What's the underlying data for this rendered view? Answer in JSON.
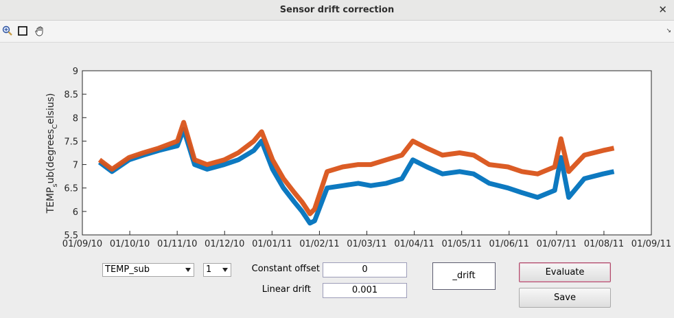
{
  "window": {
    "title": "Sensor drift correction",
    "close_glyph": "✕"
  },
  "toolbar": {
    "icons": [
      "zoom-in-icon",
      "rectangle-select-icon",
      "pan-hand-icon"
    ],
    "dock_glyph": "↘"
  },
  "chart_data": {
    "type": "line",
    "xlabel": "",
    "ylabel": "TEMP_sub(degrees_Celsius)",
    "ylabel_parts": {
      "a": "TEMP",
      "sub1": "s",
      "b": "ub(degrees",
      "sub2": "C",
      "c": "elsius)"
    },
    "xlim": [
      "2010-09-01",
      "2011-09-01"
    ],
    "ylim": [
      5.5,
      9
    ],
    "x_ticks": [
      "01/09/10",
      "01/10/10",
      "01/11/10",
      "01/12/10",
      "01/01/11",
      "01/02/11",
      "01/03/11",
      "01/04/11",
      "01/05/11",
      "01/06/11",
      "01/07/11",
      "01/08/11",
      "01/09/11"
    ],
    "y_ticks": [
      "5.5",
      "6",
      "6.5",
      "7",
      "7.5",
      "8",
      "8.5",
      "9"
    ],
    "grid": false,
    "series": [
      {
        "color": "#0072bd",
        "x": [
          "2010-09-12",
          "2010-09-20",
          "2010-10-01",
          "2010-10-10",
          "2010-10-20",
          "2010-11-01",
          "2010-11-05",
          "2010-11-12",
          "2010-11-20",
          "2010-12-01",
          "2010-12-10",
          "2010-12-20",
          "2010-12-25",
          "2011-01-01",
          "2011-01-08",
          "2011-01-15",
          "2011-01-20",
          "2011-01-25",
          "2011-01-28",
          "2011-02-05",
          "2011-02-15",
          "2011-02-25",
          "2011-03-05",
          "2011-03-15",
          "2011-03-25",
          "2011-04-01",
          "2011-04-10",
          "2011-04-20",
          "2011-05-01",
          "2011-05-10",
          "2011-05-20",
          "2011-06-01",
          "2011-06-10",
          "2011-06-20",
          "2011-07-01",
          "2011-07-05",
          "2011-07-10",
          "2011-07-20",
          "2011-08-01",
          "2011-08-08"
        ],
        "y": [
          7.05,
          6.85,
          7.1,
          7.2,
          7.3,
          7.4,
          7.75,
          7.0,
          6.9,
          7.0,
          7.1,
          7.3,
          7.5,
          6.9,
          6.5,
          6.2,
          6.0,
          5.75,
          5.8,
          6.5,
          6.55,
          6.6,
          6.55,
          6.6,
          6.7,
          7.1,
          6.95,
          6.8,
          6.85,
          6.8,
          6.6,
          6.5,
          6.4,
          6.3,
          6.45,
          7.15,
          6.3,
          6.7,
          6.8,
          6.85
        ]
      },
      {
        "color": "#d95319",
        "x": [
          "2010-09-12",
          "2010-09-20",
          "2010-10-01",
          "2010-10-10",
          "2010-10-20",
          "2010-11-01",
          "2010-11-05",
          "2010-11-12",
          "2010-11-20",
          "2010-12-01",
          "2010-12-10",
          "2010-12-20",
          "2010-12-25",
          "2011-01-01",
          "2011-01-08",
          "2011-01-15",
          "2011-01-20",
          "2011-01-25",
          "2011-01-28",
          "2011-02-05",
          "2011-02-15",
          "2011-02-25",
          "2011-03-05",
          "2011-03-15",
          "2011-03-25",
          "2011-04-01",
          "2011-04-10",
          "2011-04-20",
          "2011-05-01",
          "2011-05-10",
          "2011-05-20",
          "2011-06-01",
          "2011-06-10",
          "2011-06-20",
          "2011-07-01",
          "2011-07-05",
          "2011-07-10",
          "2011-07-20",
          "2011-08-01",
          "2011-08-08"
        ],
        "y": [
          7.1,
          6.9,
          7.15,
          7.25,
          7.35,
          7.5,
          7.9,
          7.1,
          7.0,
          7.1,
          7.25,
          7.5,
          7.7,
          7.1,
          6.7,
          6.4,
          6.2,
          5.95,
          6.05,
          6.85,
          6.95,
          7.0,
          7.0,
          7.1,
          7.2,
          7.5,
          7.35,
          7.2,
          7.25,
          7.2,
          7.0,
          6.95,
          6.85,
          6.8,
          6.95,
          7.55,
          6.85,
          7.2,
          7.3,
          7.35
        ]
      }
    ]
  },
  "controls": {
    "variable_select": {
      "value": "TEMP_sub"
    },
    "index_select": {
      "value": "1"
    },
    "constant_offset": {
      "label": "Constant offset",
      "value": "0"
    },
    "linear_drift": {
      "label": "Linear drift",
      "value": "0.001"
    },
    "output_box": {
      "text": "_drift"
    },
    "evaluate_button": {
      "label": "Evaluate"
    },
    "save_button": {
      "label": "Save"
    }
  }
}
